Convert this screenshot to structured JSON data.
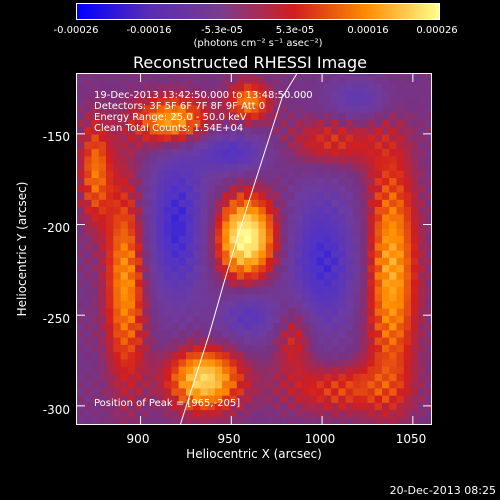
{
  "chart_data": {
    "type": "heatmap",
    "title": "Reconstructed RHESSI Image",
    "xlabel": "Heliocentric X (arcsec)",
    "ylabel": "Heliocentric Y (arcsec)",
    "xlim": [
      865,
      1060
    ],
    "ylim": [
      -310,
      -117
    ],
    "x_ticks": [
      900,
      950,
      1000,
      1050
    ],
    "x_tick_labels": [
      "900",
      "950",
      "1000",
      "1050"
    ],
    "y_ticks": [
      -150,
      -200,
      -250,
      -300
    ],
    "y_tick_labels": [
      "-150",
      "-200",
      "-250",
      "-300"
    ],
    "colorbar": {
      "range": [
        -0.00026,
        0.00026
      ],
      "tick_labels": [
        "-0.00026",
        "-0.00016",
        "-5.3e-05",
        "5.3e-05",
        "0.00016",
        "0.00026"
      ],
      "unit_label": "(photons cm⁻² s⁻¹ asec⁻²)",
      "colors": [
        "#0000ff",
        "#5a2db4",
        "#7a3c8c",
        "#d21e1e",
        "#ff8c00",
        "#ffff8c"
      ]
    },
    "annotations": {
      "time_range": "19-Dec-2013 13:42:50.000 to 13:48:50.000",
      "detectors": "Detectors: 3F 5F 6F 7F 8F 9F  Att 0",
      "energy": "Energy Range: 25.0 - 50.0 keV",
      "method": "Clean     Total Counts: 1.54E+04",
      "peak": "Position of Peak = [965,-205]"
    },
    "peak_position": [
      965,
      -205
    ],
    "limb_curve_x": [
      922,
      930,
      938,
      946,
      954,
      962,
      970,
      978,
      986
    ],
    "limb_curve_y": [
      -310,
      -285,
      -260,
      -232,
      -205,
      -180,
      -155,
      -130,
      -117
    ],
    "sources": [
      {
        "x": 958,
        "y": -207,
        "sx": 12,
        "sy": 16,
        "amp": 1.0
      },
      {
        "x": 935,
        "y": -285,
        "sx": 14,
        "sy": 12,
        "amp": 0.85
      },
      {
        "x": 918,
        "y": -143,
        "sx": 14,
        "sy": 10,
        "amp": 0.75
      },
      {
        "x": 892,
        "y": -230,
        "sx": 8,
        "sy": 40,
        "amp": 0.62
      },
      {
        "x": 1038,
        "y": -225,
        "sx": 10,
        "sy": 45,
        "amp": 0.68
      },
      {
        "x": 960,
        "y": -132,
        "sx": 8,
        "sy": 8,
        "amp": 0.55
      },
      {
        "x": 985,
        "y": -260,
        "sx": 8,
        "sy": 14,
        "amp": 0.4
      },
      {
        "x": 1005,
        "y": -155,
        "sx": 18,
        "sy": 10,
        "amp": 0.35
      },
      {
        "x": 1010,
        "y": -290,
        "sx": 22,
        "sy": 10,
        "amp": 0.38
      },
      {
        "x": 875,
        "y": -170,
        "sx": 6,
        "sy": 20,
        "amp": 0.5
      }
    ],
    "negative_regions": [
      {
        "x": 920,
        "y": -200,
        "sx": 12,
        "sy": 30,
        "amp": 0.9
      },
      {
        "x": 1000,
        "y": -220,
        "sx": 14,
        "sy": 28,
        "amp": 0.85
      },
      {
        "x": 950,
        "y": -160,
        "sx": 14,
        "sy": 8,
        "amp": 0.7
      },
      {
        "x": 960,
        "y": -250,
        "sx": 12,
        "sy": 10,
        "amp": 0.6
      },
      {
        "x": 1020,
        "y": -130,
        "sx": 12,
        "sy": 8,
        "amp": 0.5
      }
    ]
  },
  "footer": {
    "date": "20-Dec-2013 08:25"
  }
}
